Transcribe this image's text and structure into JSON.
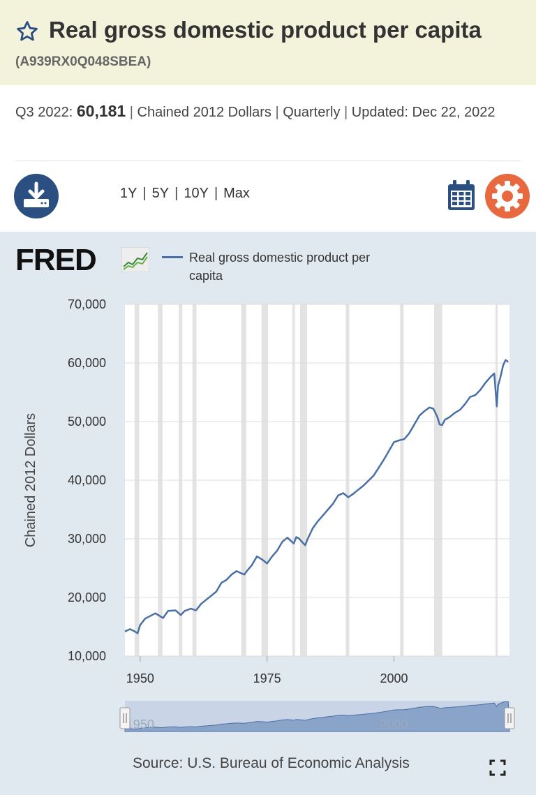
{
  "header": {
    "title": "Real gross domestic product per capita",
    "series_id": "(A939RX0Q048SBEA)"
  },
  "meta": {
    "period": "Q3 2022:",
    "value": "60,181",
    "units": "Chained 2012 Dollars",
    "frequency": "Quarterly",
    "updated_label": "Updated:",
    "updated_date": "Dec 22, 2022",
    "sep": "|"
  },
  "toolbar": {
    "ranges": [
      "1Y",
      "5Y",
      "10Y",
      "Max"
    ],
    "download_icon": "download-icon",
    "calendar_icon": "calendar-icon",
    "settings_icon": "gear-icon"
  },
  "brand": {
    "logo": "FRED"
  },
  "legend": {
    "label": "Real gross domestic product per capita"
  },
  "source": "Source: U.S. Bureau of Economic Analysis",
  "colors": {
    "line": "#4a6fa5",
    "recession": "#e3e3e3",
    "accent": "#e8693f",
    "brand": "#2c4f82"
  },
  "chart_data": {
    "type": "line",
    "ylabel": "Chained 2012 Dollars",
    "ylim": [
      10000,
      70000
    ],
    "xlim": [
      1947,
      2022.75
    ],
    "yticks": [
      "10,000",
      "20,000",
      "30,000",
      "40,000",
      "50,000",
      "60,000",
      "70,000"
    ],
    "xticks": [
      "1950",
      "1975",
      "2000"
    ],
    "navigator_labels": [
      "1950",
      "2000"
    ],
    "recessions": [
      [
        1948.9,
        1949.8
      ],
      [
        1953.5,
        1954.4
      ],
      [
        1957.6,
        1958.3
      ],
      [
        1960.3,
        1961.1
      ],
      [
        1969.9,
        1970.9
      ],
      [
        1973.9,
        1975.2
      ],
      [
        1980.0,
        1980.5
      ],
      [
        1981.5,
        1982.9
      ],
      [
        1990.5,
        1991.2
      ],
      [
        2001.2,
        2001.9
      ],
      [
        2007.9,
        2009.5
      ],
      [
        2020.0,
        2020.4
      ]
    ],
    "series": [
      {
        "name": "Real gross domestic product per capita",
        "x": [
          1947.0,
          1948.0,
          1948.75,
          1949.5,
          1950.0,
          1951.0,
          1953.0,
          1953.75,
          1954.5,
          1955.5,
          1957.0,
          1958.0,
          1958.75,
          1960.0,
          1961.0,
          1962.0,
          1965.0,
          1966.0,
          1967.0,
          1968.0,
          1969.0,
          1970.5,
          1971.0,
          1972.0,
          1973.0,
          1974.0,
          1975.0,
          1976.0,
          1977.0,
          1978.0,
          1979.0,
          1980.25,
          1980.75,
          1981.25,
          1982.5,
          1983.0,
          1984.0,
          1985.0,
          1986.0,
          1987.0,
          1988.0,
          1989.0,
          1990.0,
          1991.0,
          1992.0,
          1994.0,
          1996.0,
          1998.0,
          2000.0,
          2001.0,
          2002.0,
          2003.0,
          2004.0,
          2005.0,
          2006.0,
          2007.0,
          2007.75,
          2008.5,
          2009.0,
          2009.5,
          2010.0,
          2011.0,
          2012.0,
          2013.0,
          2014.0,
          2015.0,
          2016.0,
          2017.0,
          2018.0,
          2019.0,
          2019.75,
          2020.25,
          2020.5,
          2021.0,
          2021.5,
          2022.0,
          2022.5
        ],
        "y": [
          14200,
          14600,
          14300,
          13900,
          15300,
          16400,
          17300,
          16900,
          16500,
          17700,
          17800,
          17000,
          17700,
          18100,
          17800,
          18900,
          21000,
          22500,
          23000,
          23900,
          24500,
          23900,
          24500,
          25500,
          27000,
          26500,
          25800,
          27000,
          28000,
          29500,
          30200,
          29200,
          30300,
          30100,
          28900,
          30000,
          31800,
          33000,
          34000,
          35000,
          36000,
          37400,
          37800,
          37100,
          37700,
          39100,
          40800,
          43500,
          46500,
          46800,
          47000,
          48000,
          49500,
          51000,
          51800,
          52400,
          52200,
          50900,
          49500,
          49400,
          50300,
          50800,
          51500,
          52000,
          53000,
          54200,
          54500,
          55400,
          56600,
          57600,
          58200,
          52600,
          56100,
          57700,
          59600,
          60500,
          60181
        ]
      }
    ]
  }
}
